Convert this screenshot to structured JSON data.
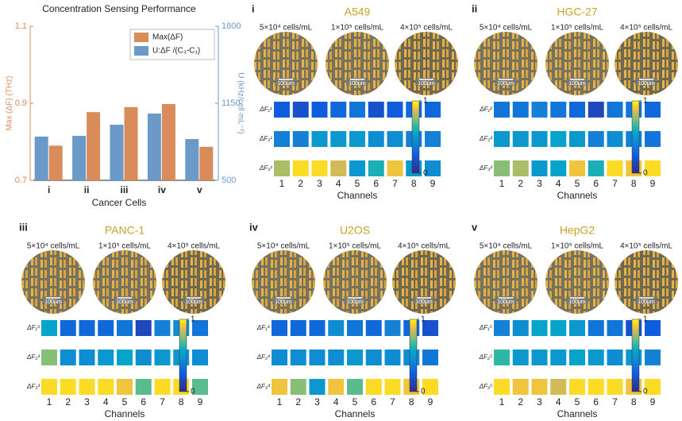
{
  "chart_data": [
    {
      "type": "bar",
      "title": "Concentration Sensing Performance",
      "categories": [
        "i",
        "ii",
        "iii",
        "iv",
        "v"
      ],
      "series": [
        {
          "name": "Max(ΔF)",
          "color": "#d98b5a",
          "values": [
            0.79,
            0.877,
            0.89,
            0.898,
            0.787
          ]
        },
        {
          "name": "U:ΔF /(C₃-C₁)",
          "color": "#6b9ac9",
          "axis": "y2",
          "values": [
            869,
            875,
            969,
            1063,
            848
          ]
        }
      ],
      "ylim": [
        0.7,
        1.1
      ],
      "yticks": [
        0.7,
        0.9,
        1.1
      ],
      "y2lim": [
        500,
        1800
      ],
      "y2ticks": [
        500,
        1150,
        1800
      ],
      "ylabel": "Max (ΔF) (THz)",
      "y2label": "U (kHz/cell·mL⁻¹)",
      "xlabel": "Cancer  Cells",
      "legend": "top-right"
    },
    {
      "type": "heatmap",
      "label": "i",
      "title": "A549",
      "conditions": [
        "5×10⁴ cells/mL",
        "1×10⁵ cells/mL",
        "4×10⁵ cells/mL"
      ],
      "scale_bar": "100μm",
      "x": [
        1,
        2,
        3,
        4,
        5,
        6,
        7,
        8,
        9
      ],
      "y": [
        "ΔF₁¹",
        "ΔF₂¹",
        "ΔF₃¹"
      ],
      "xlabel": "Channels",
      "z": [
        [
          0.25,
          0.2,
          0.25,
          0.3,
          0.35,
          0.2,
          0.25,
          0.3,
          0.3
        ],
        [
          0.4,
          0.4,
          0.5,
          0.5,
          0.5,
          0.45,
          0.45,
          0.4,
          0.4
        ],
        [
          0.8,
          0.95,
          0.95,
          0.85,
          0.5,
          0.6,
          0.9,
          0.5,
          0.45
        ]
      ],
      "zlim": [
        0,
        1
      ],
      "cticks": [
        0,
        1
      ],
      "colormap": "parula"
    },
    {
      "type": "heatmap",
      "label": "ii",
      "title": "HGC-27",
      "conditions": [
        "5×10⁴ cells/mL",
        "1×10⁵ cells/mL",
        "4×10⁵ cells/mL"
      ],
      "scale_bar": "100μm",
      "x": [
        1,
        2,
        3,
        4,
        5,
        6,
        7,
        8,
        9
      ],
      "y": [
        "ΔF₁²",
        "ΔF₂²",
        "ΔF₃²"
      ],
      "xlabel": "Channels",
      "z": [
        [
          0.35,
          0.35,
          0.4,
          0.35,
          0.3,
          0.15,
          0.35,
          0.35,
          0.3
        ],
        [
          0.5,
          0.5,
          0.5,
          0.55,
          0.5,
          0.4,
          0.45,
          0.4,
          0.35
        ],
        [
          0.75,
          0.8,
          0.5,
          0.55,
          0.9,
          0.6,
          0.95,
          0.9,
          0.95
        ]
      ],
      "zlim": [
        0,
        1
      ],
      "cticks": [
        0,
        1
      ],
      "colormap": "parula"
    },
    {
      "type": "heatmap",
      "label": "iii",
      "title": "PANC-1",
      "conditions": [
        "5×10⁴ cells/mL",
        "1×10⁵ cells/mL",
        "4×10⁵ cells/mL"
      ],
      "scale_bar": "100μm",
      "x": [
        1,
        2,
        3,
        4,
        5,
        6,
        7,
        8,
        9
      ],
      "y": [
        "ΔF₁³",
        "ΔF₂³",
        "ΔF₃³"
      ],
      "xlabel": "Channels",
      "z": [
        [
          0.55,
          0.3,
          0.3,
          0.3,
          0.35,
          0.15,
          0.4,
          0.45,
          0.35
        ],
        [
          0.75,
          0.45,
          0.45,
          0.5,
          0.55,
          0.45,
          0.5,
          0.5,
          0.45
        ],
        [
          0.95,
          0.95,
          0.95,
          0.95,
          0.9,
          0.7,
          0.95,
          0.95,
          0.7
        ]
      ],
      "zlim": [
        0,
        1
      ],
      "cticks": [
        0,
        1
      ],
      "colormap": "parula"
    },
    {
      "type": "heatmap",
      "label": "iv",
      "title": "U2OS",
      "conditions": [
        "5×10⁴ cells/mL",
        "1×10⁵ cells/mL",
        "4×10⁵ cells/mL"
      ],
      "scale_bar": "100μm",
      "x": [
        1,
        2,
        3,
        4,
        5,
        6,
        7,
        8,
        9
      ],
      "y": [
        "ΔF₁⁴",
        "ΔF₂⁴",
        "ΔF₃⁴"
      ],
      "xlabel": "Channels",
      "z": [
        [
          0.3,
          0.3,
          0.3,
          0.45,
          0.35,
          0.3,
          0.4,
          0.3,
          0.2
        ],
        [
          0.45,
          0.45,
          0.45,
          0.45,
          0.5,
          0.45,
          0.45,
          0.45,
          0.35
        ],
        [
          0.9,
          0.75,
          0.5,
          0.9,
          0.7,
          0.95,
          0.95,
          0.9,
          0.95
        ]
      ],
      "zlim": [
        0,
        1
      ],
      "cticks": [
        0,
        1
      ],
      "colormap": "parula"
    },
    {
      "type": "heatmap",
      "label": "v",
      "title": "HepG2",
      "conditions": [
        "5×10⁴ cells/mL",
        "1×10⁵ cells/mL",
        "4×10⁵ cells/mL"
      ],
      "scale_bar": "100μm",
      "x": [
        1,
        2,
        3,
        4,
        5,
        6,
        7,
        8,
        9
      ],
      "y": [
        "ΔF₁⁵",
        "ΔF₂⁵",
        "ΔF₃⁵"
      ],
      "xlabel": "Channels",
      "z": [
        [
          0.4,
          0.45,
          0.55,
          0.55,
          0.5,
          0.35,
          0.35,
          0.2,
          0.25
        ],
        [
          0.65,
          0.5,
          0.5,
          0.5,
          0.55,
          0.5,
          0.45,
          0.5,
          0.4
        ],
        [
          0.95,
          0.9,
          0.9,
          0.85,
          0.95,
          0.95,
          0.95,
          0.9,
          0.95
        ]
      ],
      "zlim": [
        0,
        1
      ],
      "cticks": [
        0,
        1
      ],
      "colormap": "parula"
    }
  ]
}
